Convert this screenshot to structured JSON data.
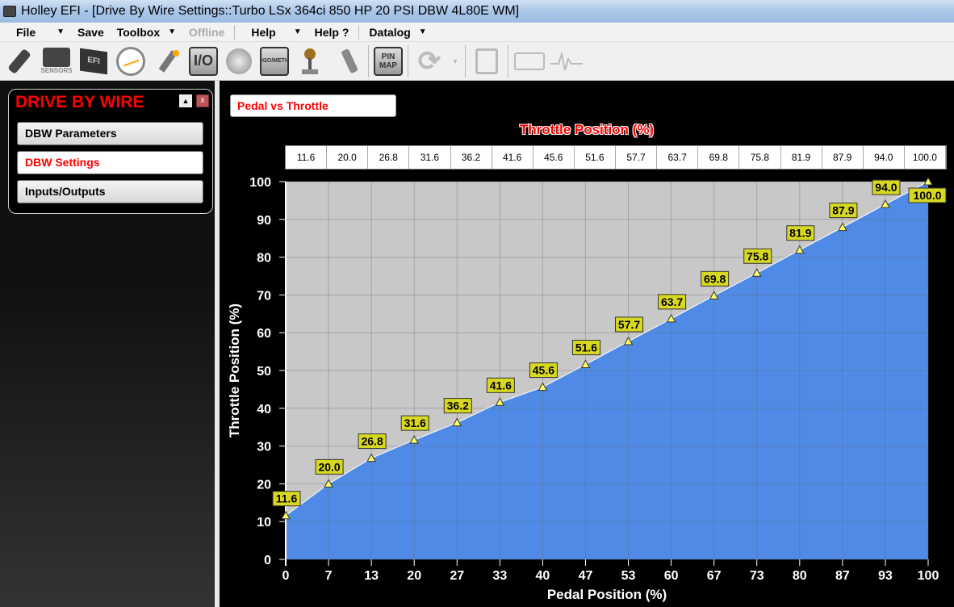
{
  "window": {
    "title": "Holley EFI - [Drive By Wire Settings::Turbo LSx 364ci 850 HP 20 PSI DBW 4L80E WM]"
  },
  "menu": {
    "file": "File",
    "save": "Save",
    "toolbox": "Toolbox",
    "offline": "Offline",
    "help": "Help",
    "help_q": "Help ?",
    "datalog": "Datalog"
  },
  "toolbar": {
    "icons": [
      "injector-icon",
      "sensors-icon",
      "efi-ecu-icon",
      "gauge-icon",
      "spark-plug-icon",
      "io-icon",
      "turbo-icon",
      "water-meth-icon",
      "shifter-icon",
      "pedal-icon",
      "pin-map-icon",
      "refresh-icon",
      "notepad-icon",
      "dashboard-icon",
      "heartbeat-icon"
    ],
    "sensors_label": "SENSORS",
    "io_label": "I/O",
    "efi_label": "EFI",
    "meth_label": "H2O/METH",
    "pin_map_label": "PIN MAP"
  },
  "sidebar": {
    "title": "DRIVE BY WIRE",
    "items": [
      {
        "label": "DBW Parameters",
        "active": false
      },
      {
        "label": "DBW Settings",
        "active": true
      },
      {
        "label": "Inputs/Outputs",
        "active": false
      }
    ]
  },
  "main": {
    "tab_label": "Pedal vs Throttle"
  },
  "colors": {
    "fill": "#4f8be6",
    "plot_bg": "#c8c8c8",
    "label_bg": "#d8d820",
    "marker": "#ffff66",
    "title": "#ff0000"
  },
  "chart_data": {
    "type": "area",
    "title": "Throttle Position (%)",
    "xlabel": "Pedal Position (%)",
    "ylabel": "Throttle Position (%)",
    "x": [
      0,
      7,
      13,
      20,
      27,
      33,
      40,
      47,
      53,
      60,
      67,
      73,
      80,
      87,
      93,
      100
    ],
    "y": [
      11.6,
      20.0,
      26.8,
      31.6,
      36.2,
      41.6,
      45.6,
      51.6,
      57.7,
      63.7,
      69.8,
      75.8,
      81.9,
      87.9,
      94.0,
      100.0
    ],
    "ylim": [
      0,
      100
    ],
    "yticks": [
      0,
      10,
      20,
      30,
      40,
      50,
      60,
      70,
      80,
      90,
      100
    ],
    "grid": true,
    "data_labels": true
  }
}
